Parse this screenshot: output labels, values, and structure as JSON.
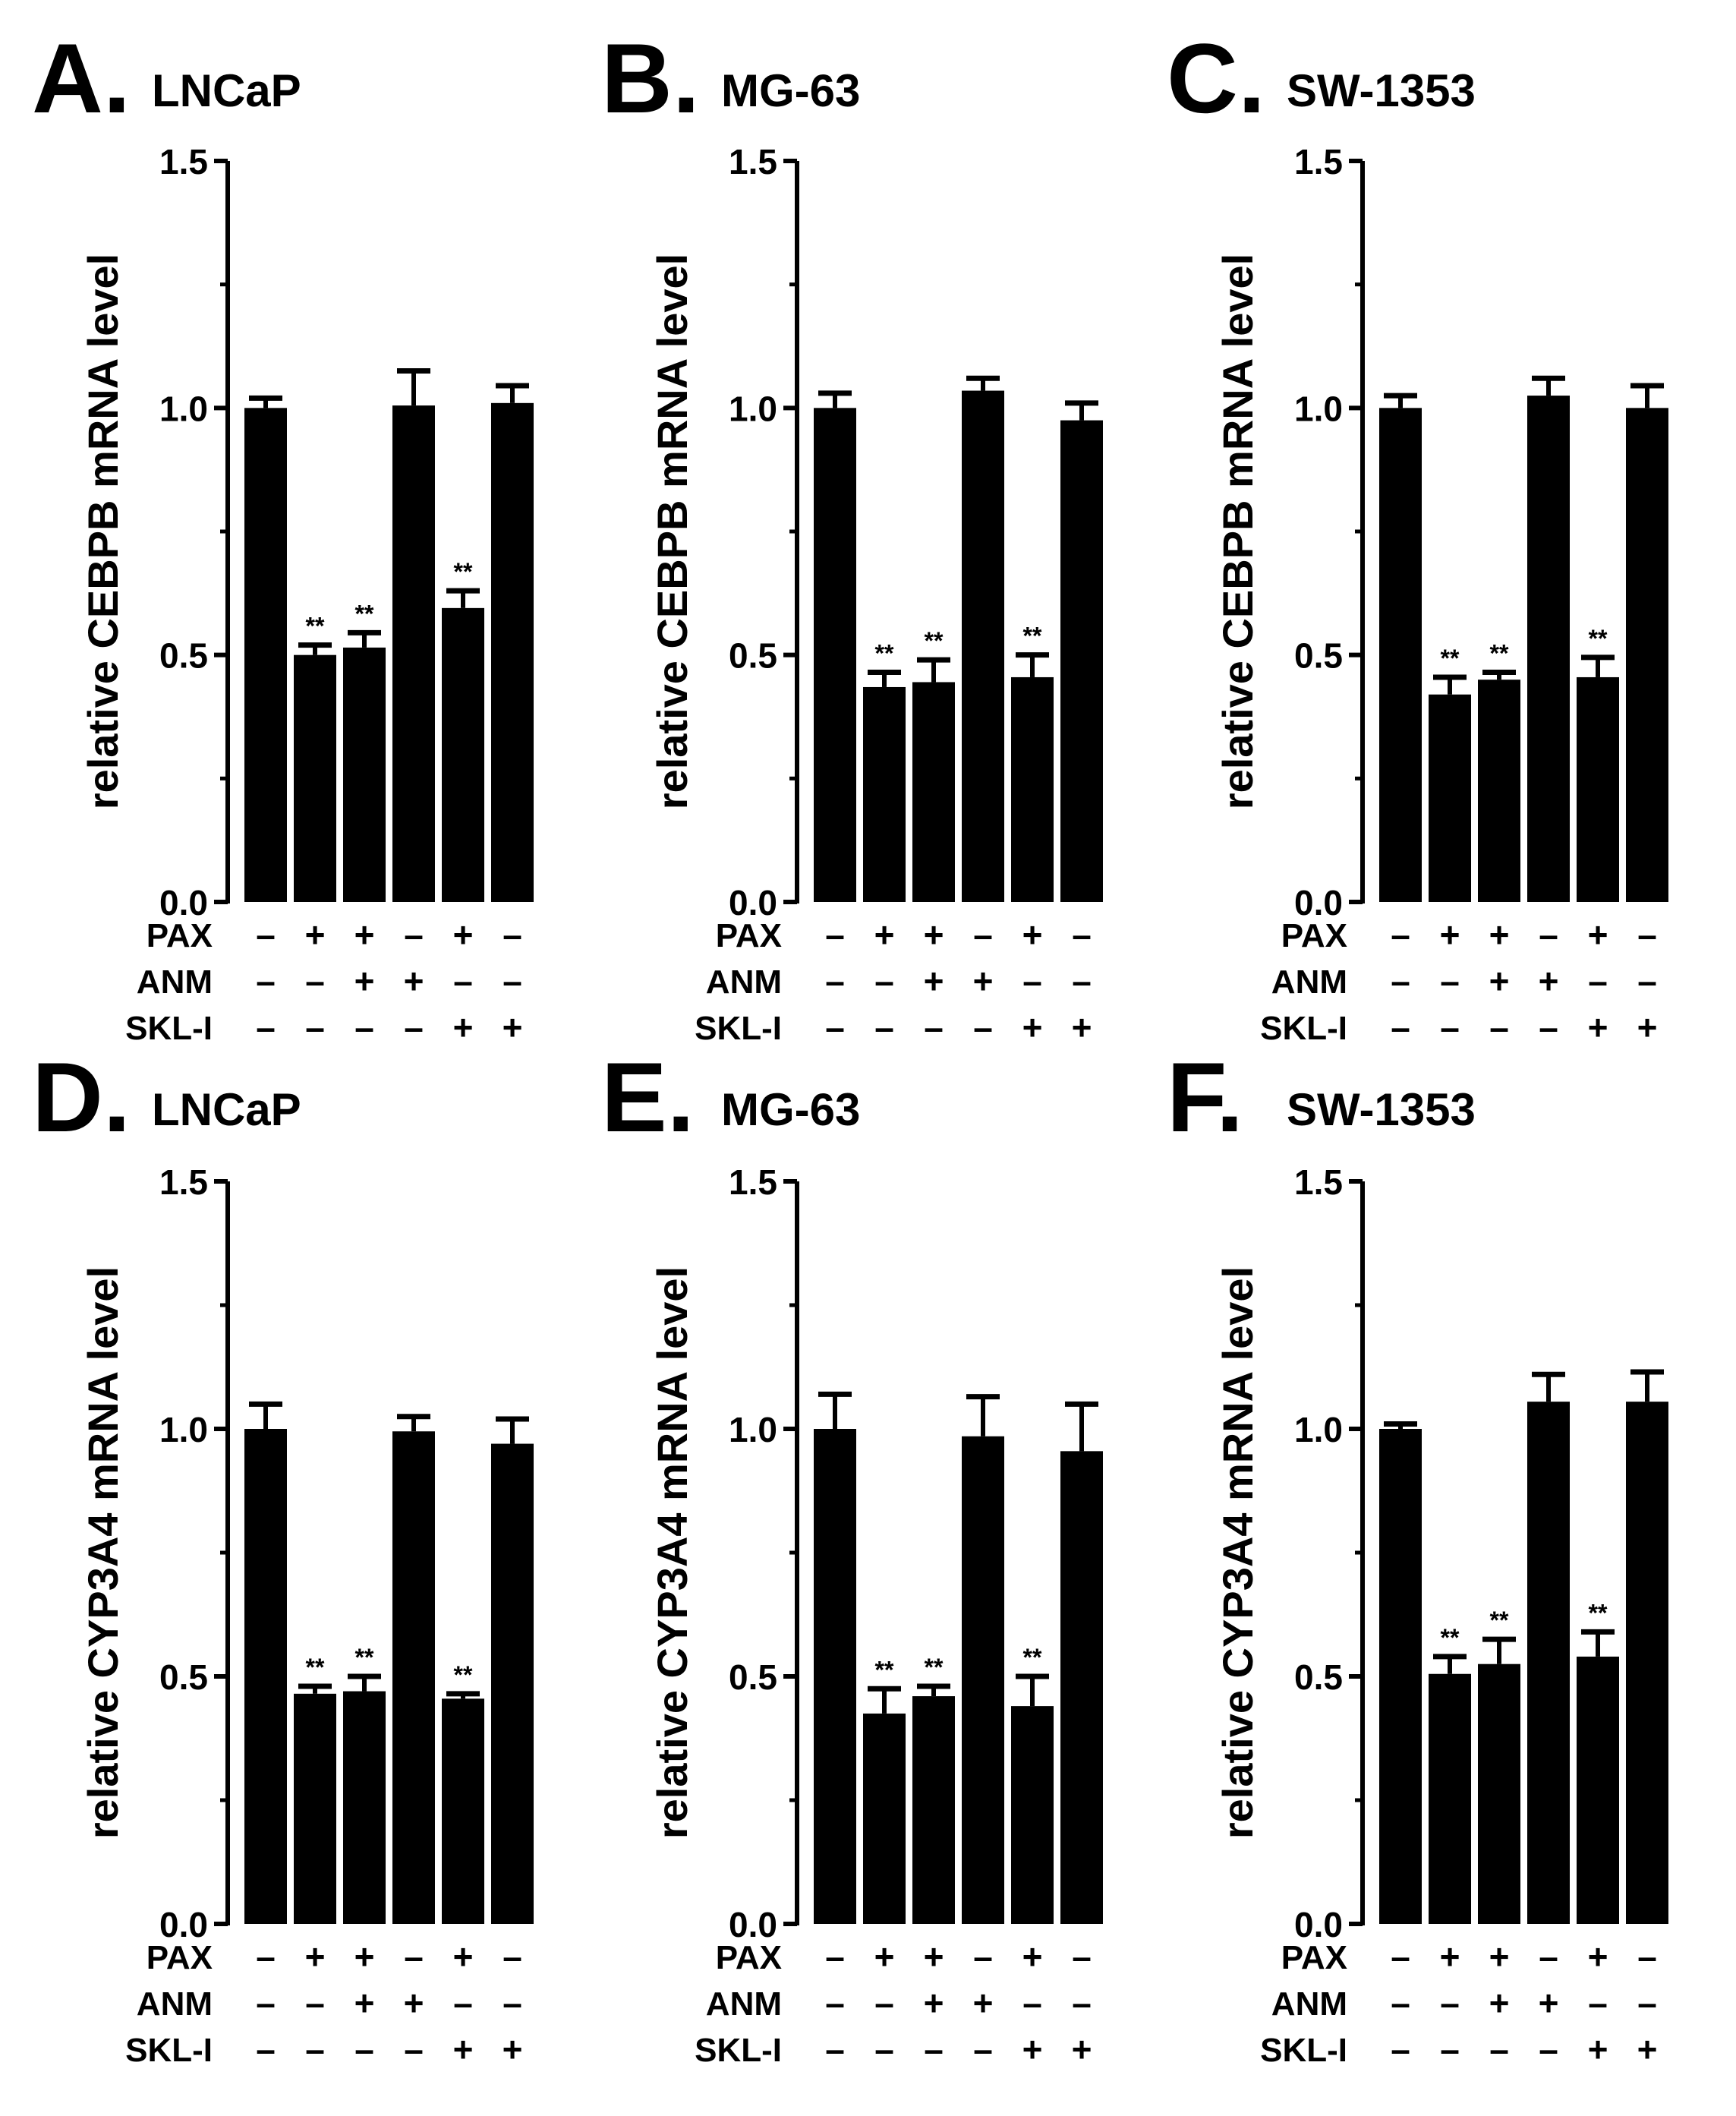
{
  "chart_data": [
    {
      "type": "bar",
      "panel_letter": "A.",
      "title": "LNCaP",
      "ylabel": "relative CEBPB mRNA level",
      "ylim": [
        0,
        1.5
      ],
      "yticks": [
        "0.0",
        "0.5",
        "1.0",
        "1.5"
      ],
      "values": [
        1.0,
        0.5,
        0.515,
        1.005,
        0.595,
        1.01
      ],
      "errors": [
        0.02,
        0.02,
        0.03,
        0.07,
        0.035,
        0.035
      ],
      "significance": [
        "",
        "**",
        "**",
        "",
        "**",
        ""
      ],
      "treatments": [
        {
          "label": "PAX",
          "signs": [
            "–",
            "+",
            "+",
            "–",
            "+",
            "–"
          ]
        },
        {
          "label": "ANM",
          "signs": [
            "–",
            "–",
            "+",
            "+",
            "–",
            "–"
          ]
        },
        {
          "label": "SKL-I",
          "signs": [
            "–",
            "–",
            "–",
            "–",
            "+",
            "+"
          ]
        }
      ]
    },
    {
      "type": "bar",
      "panel_letter": "B.",
      "title": "MG-63",
      "ylabel": "relative CEBPB mRNA level",
      "ylim": [
        0,
        1.5
      ],
      "yticks": [
        "0.0",
        "0.5",
        "1.0",
        "1.5"
      ],
      "values": [
        1.0,
        0.435,
        0.445,
        1.035,
        0.455,
        0.975
      ],
      "errors": [
        0.03,
        0.03,
        0.045,
        0.025,
        0.045,
        0.035
      ],
      "significance": [
        "",
        "**",
        "**",
        "",
        "**",
        ""
      ],
      "treatments": [
        {
          "label": "PAX",
          "signs": [
            "–",
            "+",
            "+",
            "–",
            "+",
            "–"
          ]
        },
        {
          "label": "ANM",
          "signs": [
            "–",
            "–",
            "+",
            "+",
            "–",
            "–"
          ]
        },
        {
          "label": "SKL-I",
          "signs": [
            "–",
            "–",
            "–",
            "–",
            "+",
            "+"
          ]
        }
      ]
    },
    {
      "type": "bar",
      "panel_letter": "C.",
      "title": "SW-1353",
      "ylabel": "relative CEBPB mRNA level",
      "ylim": [
        0,
        1.5
      ],
      "yticks": [
        "0.0",
        "0.5",
        "1.0",
        "1.5"
      ],
      "values": [
        1.0,
        0.42,
        0.45,
        1.025,
        0.455,
        1.0
      ],
      "errors": [
        0.025,
        0.035,
        0.015,
        0.035,
        0.04,
        0.045
      ],
      "significance": [
        "",
        "**",
        "**",
        "",
        "**",
        ""
      ],
      "treatments": [
        {
          "label": "PAX",
          "signs": [
            "–",
            "+",
            "+",
            "–",
            "+",
            "–"
          ]
        },
        {
          "label": "ANM",
          "signs": [
            "–",
            "–",
            "+",
            "+",
            "–",
            "–"
          ]
        },
        {
          "label": "SKL-I",
          "signs": [
            "–",
            "–",
            "–",
            "–",
            "+",
            "+"
          ]
        }
      ]
    },
    {
      "type": "bar",
      "panel_letter": "D.",
      "title": "LNCaP",
      "ylabel": "relative CYP3A4 mRNA level",
      "ylim": [
        0,
        1.5
      ],
      "yticks": [
        "0.0",
        "0.5",
        "1.0",
        "1.5"
      ],
      "values": [
        1.0,
        0.465,
        0.47,
        0.995,
        0.455,
        0.97
      ],
      "errors": [
        0.05,
        0.015,
        0.03,
        0.03,
        0.01,
        0.05
      ],
      "significance": [
        "",
        "**",
        "**",
        "",
        "**",
        ""
      ],
      "treatments": [
        {
          "label": "PAX",
          "signs": [
            "–",
            "+",
            "+",
            "–",
            "+",
            "–"
          ]
        },
        {
          "label": "ANM",
          "signs": [
            "–",
            "–",
            "+",
            "+",
            "–",
            "–"
          ]
        },
        {
          "label": "SKL-I",
          "signs": [
            "–",
            "–",
            "–",
            "–",
            "+",
            "+"
          ]
        }
      ]
    },
    {
      "type": "bar",
      "panel_letter": "E.",
      "title": "MG-63",
      "ylabel": "relative CYP3A4 mRNA level",
      "ylim": [
        0,
        1.5
      ],
      "yticks": [
        "0.0",
        "0.5",
        "1.0",
        "1.5"
      ],
      "values": [
        1.0,
        0.425,
        0.46,
        0.985,
        0.44,
        0.955
      ],
      "errors": [
        0.07,
        0.05,
        0.02,
        0.08,
        0.06,
        0.095
      ],
      "significance": [
        "",
        "**",
        "**",
        "",
        "**",
        ""
      ],
      "treatments": [
        {
          "label": "PAX",
          "signs": [
            "–",
            "+",
            "+",
            "–",
            "+",
            "–"
          ]
        },
        {
          "label": "ANM",
          "signs": [
            "–",
            "–",
            "+",
            "+",
            "–",
            "–"
          ]
        },
        {
          "label": "SKL-I",
          "signs": [
            "–",
            "–",
            "–",
            "–",
            "+",
            "+"
          ]
        }
      ]
    },
    {
      "type": "bar",
      "panel_letter": "F.",
      "title": "SW-1353",
      "ylabel": "relative CYP3A4 mRNA level",
      "ylim": [
        0,
        1.5
      ],
      "yticks": [
        "0.0",
        "0.5",
        "1.0",
        "1.5"
      ],
      "values": [
        1.0,
        0.505,
        0.525,
        1.055,
        0.54,
        1.055
      ],
      "errors": [
        0.01,
        0.035,
        0.05,
        0.055,
        0.05,
        0.06
      ],
      "significance": [
        "",
        "**",
        "**",
        "",
        "**",
        ""
      ],
      "treatments": [
        {
          "label": "PAX",
          "signs": [
            "–",
            "+",
            "+",
            "–",
            "+",
            "–"
          ]
        },
        {
          "label": "ANM",
          "signs": [
            "–",
            "–",
            "+",
            "+",
            "–",
            "–"
          ]
        },
        {
          "label": "SKL-I",
          "signs": [
            "–",
            "–",
            "–",
            "–",
            "+",
            "+"
          ]
        }
      ]
    }
  ]
}
